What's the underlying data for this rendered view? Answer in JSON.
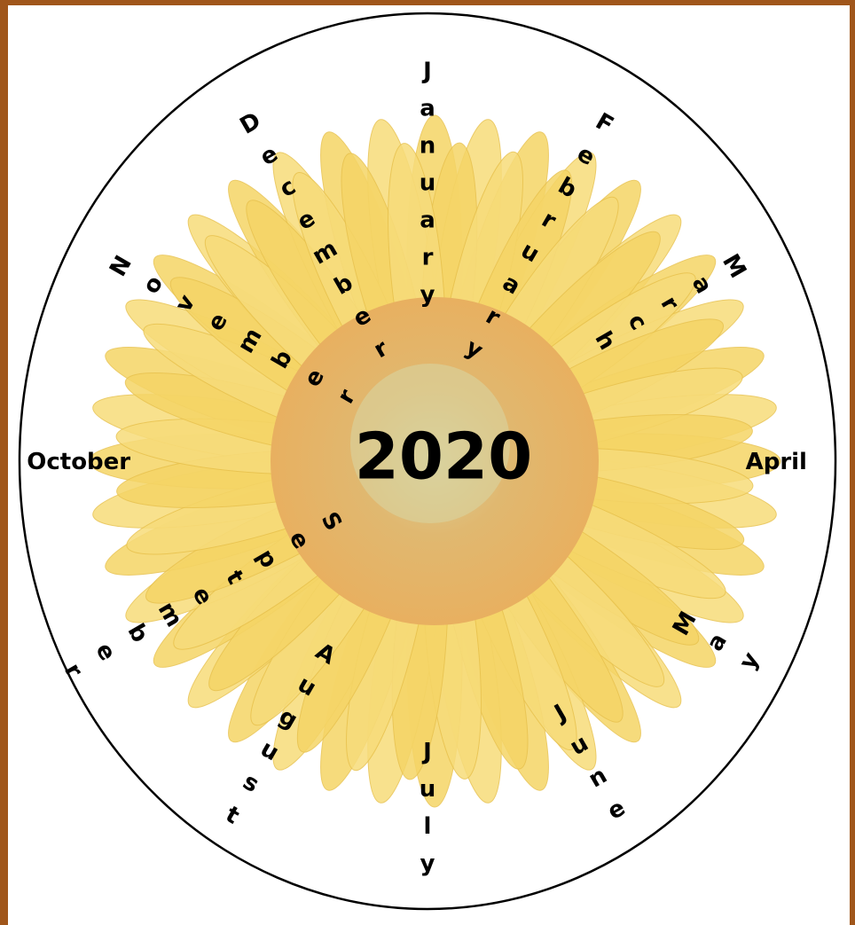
{
  "year": "2020",
  "months": [
    "January",
    "February",
    "March",
    "April",
    "May",
    "June",
    "July",
    "August",
    "September",
    "October",
    "November",
    "December"
  ]
}
